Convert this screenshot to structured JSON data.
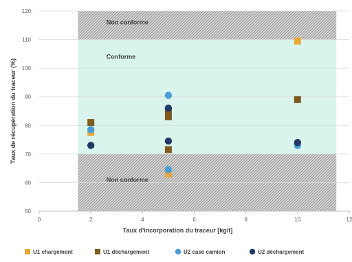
{
  "chart_data": {
    "type": "scatter",
    "xlabel": "Taux d'incorporation du traceur [kg/t]",
    "ylabel": "Taux de récupération du traceur (%)",
    "xlim": [
      0,
      12
    ],
    "ylim": [
      50,
      120
    ],
    "x_ticks": [
      "0",
      "2",
      "4",
      "6",
      "8",
      "10",
      "12"
    ],
    "y_ticks": [
      "50",
      "60",
      "70",
      "80",
      "90",
      "100",
      "110",
      "120"
    ],
    "zones": [
      {
        "label": "Non conforme",
        "y_from": 110,
        "y_to": 120,
        "label_y": 116,
        "pattern": "hatched"
      },
      {
        "label": "Conforme",
        "y_from": 70,
        "y_to": 110,
        "label_y": 104,
        "color": "#d8f4ec"
      },
      {
        "label": "Non conforme",
        "y_from": 50,
        "y_to": 70,
        "label_y": 61,
        "pattern": "hatched"
      }
    ],
    "zone_x_range": [
      1.5,
      11.5
    ],
    "grid": true,
    "legend_position": "bottom",
    "series": [
      {
        "name": "U1 chargement",
        "marker": "square",
        "color": "#e8a838",
        "points": [
          [
            2,
            77.5
          ],
          [
            5,
            63
          ],
          [
            10,
            109.5
          ]
        ]
      },
      {
        "name": "U1 déchargement",
        "marker": "square",
        "color": "#7f5a1e",
        "points": [
          [
            2,
            81
          ],
          [
            5,
            85
          ],
          [
            5,
            83
          ],
          [
            5,
            71.5
          ],
          [
            10,
            89
          ]
        ]
      },
      {
        "name": "U2 case camion",
        "marker": "circle",
        "color": "#4a9fd6",
        "points": [
          [
            2,
            78.5
          ],
          [
            5,
            90.5
          ],
          [
            5,
            64.5
          ],
          [
            10,
            73
          ]
        ]
      },
      {
        "name": "U2 déchargement",
        "marker": "circle",
        "color": "#1f3a66",
        "points": [
          [
            2,
            73
          ],
          [
            5,
            86
          ],
          [
            5,
            74.5
          ],
          [
            10,
            74
          ]
        ]
      }
    ]
  }
}
